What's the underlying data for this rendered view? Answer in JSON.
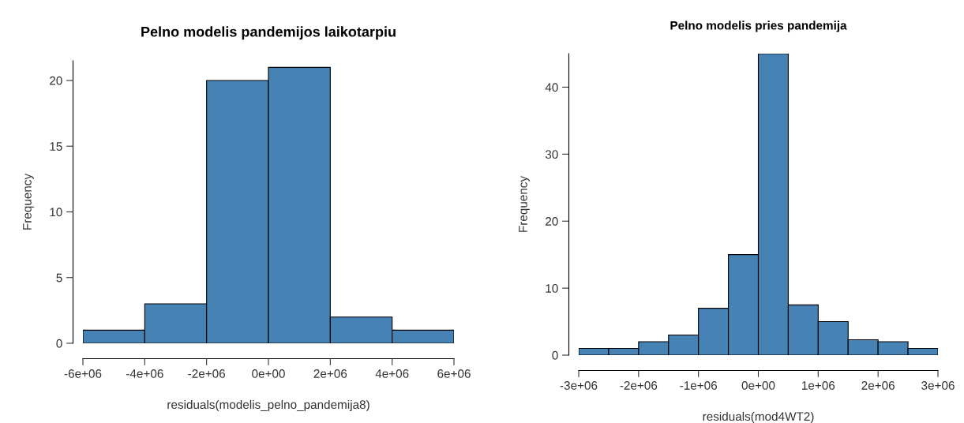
{
  "chart_data": [
    {
      "type": "histogram",
      "title": "Pelno modelis pandemijos laikotarpiu",
      "xlabel": "residuals(modelis_pelno_pandemija8)",
      "ylabel": "Frequency",
      "bins": [
        -6000000,
        -4000000,
        -2000000,
        0,
        2000000,
        4000000,
        6000000
      ],
      "values": [
        1,
        3,
        20,
        21,
        2,
        1
      ],
      "color": "#4682b4",
      "xlim": [
        -6000000,
        6000000
      ],
      "xticks": [
        {
          "value": -6000000,
          "label": "-6e+06"
        },
        {
          "value": -4000000,
          "label": "-4e+06"
        },
        {
          "value": -2000000,
          "label": "-2e+06"
        },
        {
          "value": 0,
          "label": "0e+00"
        },
        {
          "value": 2000000,
          "label": "2e+06"
        },
        {
          "value": 4000000,
          "label": "4e+06"
        },
        {
          "value": 6000000,
          "label": "6e+06"
        }
      ],
      "ylim": [
        0,
        21.5
      ],
      "yticks": [
        0,
        5,
        10,
        15,
        20
      ],
      "grid": false,
      "legend": false
    },
    {
      "type": "histogram",
      "title": "Pelno modelis pries pandemija",
      "xlabel": "residuals(mod4WT2)",
      "ylabel": "Frequency",
      "bins": [
        -3000000,
        -2500000,
        -2000000,
        -1500000,
        -1000000,
        -500000,
        0,
        500000,
        1000000,
        1500000,
        2000000,
        2500000,
        3000000
      ],
      "values": [
        1,
        1,
        2,
        3,
        7,
        15,
        45,
        7.5,
        5,
        2.3,
        2,
        1
      ],
      "color": "#4682b4",
      "xlim": [
        -3000000,
        3000000
      ],
      "xticks": [
        {
          "value": -3000000,
          "label": "-3e+06"
        },
        {
          "value": -2000000,
          "label": "-2e+06"
        },
        {
          "value": -1000000,
          "label": "-1e+06"
        },
        {
          "value": 0,
          "label": "0e+00"
        },
        {
          "value": 1000000,
          "label": "1e+06"
        },
        {
          "value": 2000000,
          "label": "2e+06"
        },
        {
          "value": 3000000,
          "label": "3e+06"
        }
      ],
      "ylim": [
        0,
        45
      ],
      "yticks": [
        0,
        10,
        20,
        30,
        40
      ],
      "grid": false,
      "legend": false
    }
  ]
}
